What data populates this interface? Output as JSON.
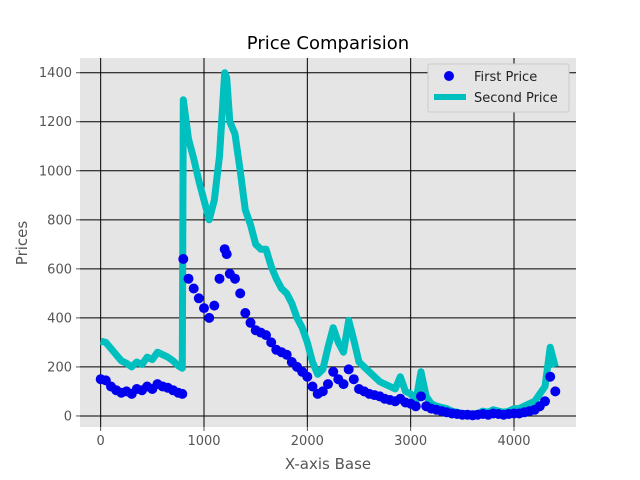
{
  "chart_data": {
    "type": "line",
    "title": "Price Comparision",
    "xlabel": "X-axis Base",
    "ylabel": "Prices",
    "xlim": [
      -200,
      4600
    ],
    "ylim": [
      -45,
      1460
    ],
    "xticks": [
      0,
      1000,
      2000,
      3000,
      4000
    ],
    "yticks": [
      0,
      200,
      400,
      600,
      800,
      1000,
      1200,
      1400
    ],
    "grid": true,
    "legend_position": "top-right",
    "series": [
      {
        "name": "First Price",
        "style": "markers",
        "color": "#0000ee",
        "x": [
          0,
          50,
          100,
          150,
          200,
          250,
          300,
          350,
          400,
          450,
          500,
          550,
          600,
          650,
          700,
          750,
          790,
          800,
          850,
          900,
          950,
          1000,
          1050,
          1100,
          1150,
          1200,
          1220,
          1250,
          1300,
          1350,
          1400,
          1450,
          1500,
          1550,
          1600,
          1650,
          1700,
          1750,
          1800,
          1850,
          1900,
          1950,
          2000,
          2050,
          2100,
          2150,
          2200,
          2250,
          2300,
          2350,
          2400,
          2450,
          2500,
          2550,
          2600,
          2650,
          2700,
          2750,
          2800,
          2850,
          2900,
          2950,
          3000,
          3050,
          3100,
          3150,
          3200,
          3250,
          3300,
          3350,
          3400,
          3450,
          3500,
          3550,
          3600,
          3650,
          3700,
          3750,
          3800,
          3850,
          3900,
          3950,
          4000,
          4050,
          4100,
          4150,
          4200,
          4250,
          4300,
          4350,
          4400
        ],
        "y": [
          150,
          145,
          120,
          105,
          95,
          100,
          90,
          110,
          105,
          120,
          110,
          130,
          120,
          115,
          105,
          95,
          90,
          640,
          560,
          520,
          480,
          440,
          400,
          450,
          560,
          680,
          660,
          580,
          560,
          500,
          420,
          380,
          350,
          340,
          330,
          300,
          270,
          260,
          250,
          220,
          200,
          180,
          160,
          120,
          90,
          100,
          130,
          180,
          150,
          130,
          190,
          150,
          110,
          100,
          90,
          85,
          80,
          70,
          65,
          60,
          70,
          55,
          50,
          40,
          80,
          40,
          30,
          25,
          20,
          15,
          10,
          8,
          5,
          5,
          3,
          5,
          8,
          5,
          10,
          8,
          5,
          8,
          10,
          10,
          15,
          20,
          25,
          40,
          60,
          160,
          100
        ],
        "legend_label": "First Price"
      },
      {
        "name": "Second Price",
        "style": "line",
        "color": "#00bfbf",
        "x": [
          0,
          50,
          100,
          150,
          200,
          250,
          300,
          350,
          400,
          450,
          500,
          550,
          600,
          650,
          700,
          750,
          790,
          800,
          850,
          900,
          950,
          1000,
          1050,
          1100,
          1150,
          1200,
          1220,
          1250,
          1300,
          1350,
          1400,
          1450,
          1500,
          1550,
          1600,
          1650,
          1700,
          1750,
          1800,
          1850,
          1900,
          1950,
          2000,
          2050,
          2100,
          2150,
          2200,
          2250,
          2300,
          2350,
          2400,
          2450,
          2500,
          2550,
          2600,
          2650,
          2700,
          2750,
          2800,
          2850,
          2900,
          2950,
          3000,
          3050,
          3100,
          3150,
          3200,
          3250,
          3300,
          3350,
          3400,
          3450,
          3500,
          3550,
          3600,
          3650,
          3700,
          3750,
          3800,
          3850,
          3900,
          3950,
          4000,
          4050,
          4100,
          4150,
          4200,
          4250,
          4300,
          4350,
          4400
        ],
        "y": [
          305,
          300,
          275,
          250,
          225,
          215,
          200,
          220,
          210,
          240,
          230,
          260,
          250,
          240,
          225,
          205,
          195,
          1290,
          1130,
          1050,
          960,
          880,
          800,
          880,
          1060,
          1400,
          1380,
          1200,
          1150,
          1000,
          840,
          780,
          700,
          680,
          680,
          610,
          560,
          520,
          500,
          460,
          400,
          360,
          300,
          220,
          170,
          190,
          280,
          360,
          300,
          260,
          390,
          310,
          220,
          200,
          180,
          160,
          140,
          130,
          120,
          110,
          160,
          100,
          90,
          60,
          180,
          80,
          50,
          40,
          35,
          30,
          20,
          15,
          10,
          10,
          8,
          10,
          20,
          15,
          25,
          20,
          15,
          20,
          30,
          30,
          40,
          50,
          60,
          90,
          120,
          280,
          200
        ],
        "legend_label": "Second Price"
      }
    ]
  },
  "colors": {
    "plot_background": "#e5e5e5",
    "grid": "#000000",
    "first_price": "#0000ee",
    "second_price": "#00bfbf"
  }
}
